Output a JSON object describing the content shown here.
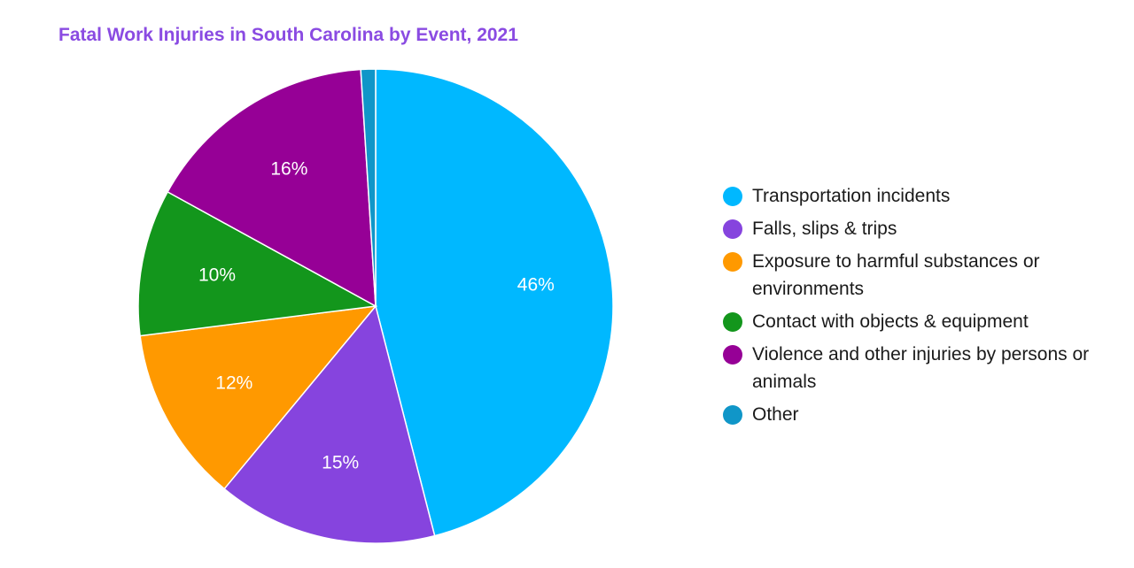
{
  "chart_data": {
    "type": "pie",
    "title": "Fatal Work Injuries in South Carolina by Event, 2021",
    "legend_position": "right",
    "slices": [
      {
        "name": "Transportation incidents",
        "value": 46,
        "label": "46%",
        "color": "#00b8ff"
      },
      {
        "name": "Falls, slips & trips",
        "value": 15,
        "label": "15%",
        "color": "#8644de"
      },
      {
        "name": "Exposure to harmful substances or environments",
        "value": 12,
        "label": "12%",
        "color": "#ff9900"
      },
      {
        "name": "Contact with objects & equipment",
        "value": 10,
        "label": "10%",
        "color": "#13961c"
      },
      {
        "name": "Violence and other injuries by persons or animals",
        "value": 16,
        "label": "16%",
        "color": "#960096"
      },
      {
        "name": "Other",
        "value": 1,
        "label": "",
        "color": "#1096c8"
      }
    ]
  }
}
